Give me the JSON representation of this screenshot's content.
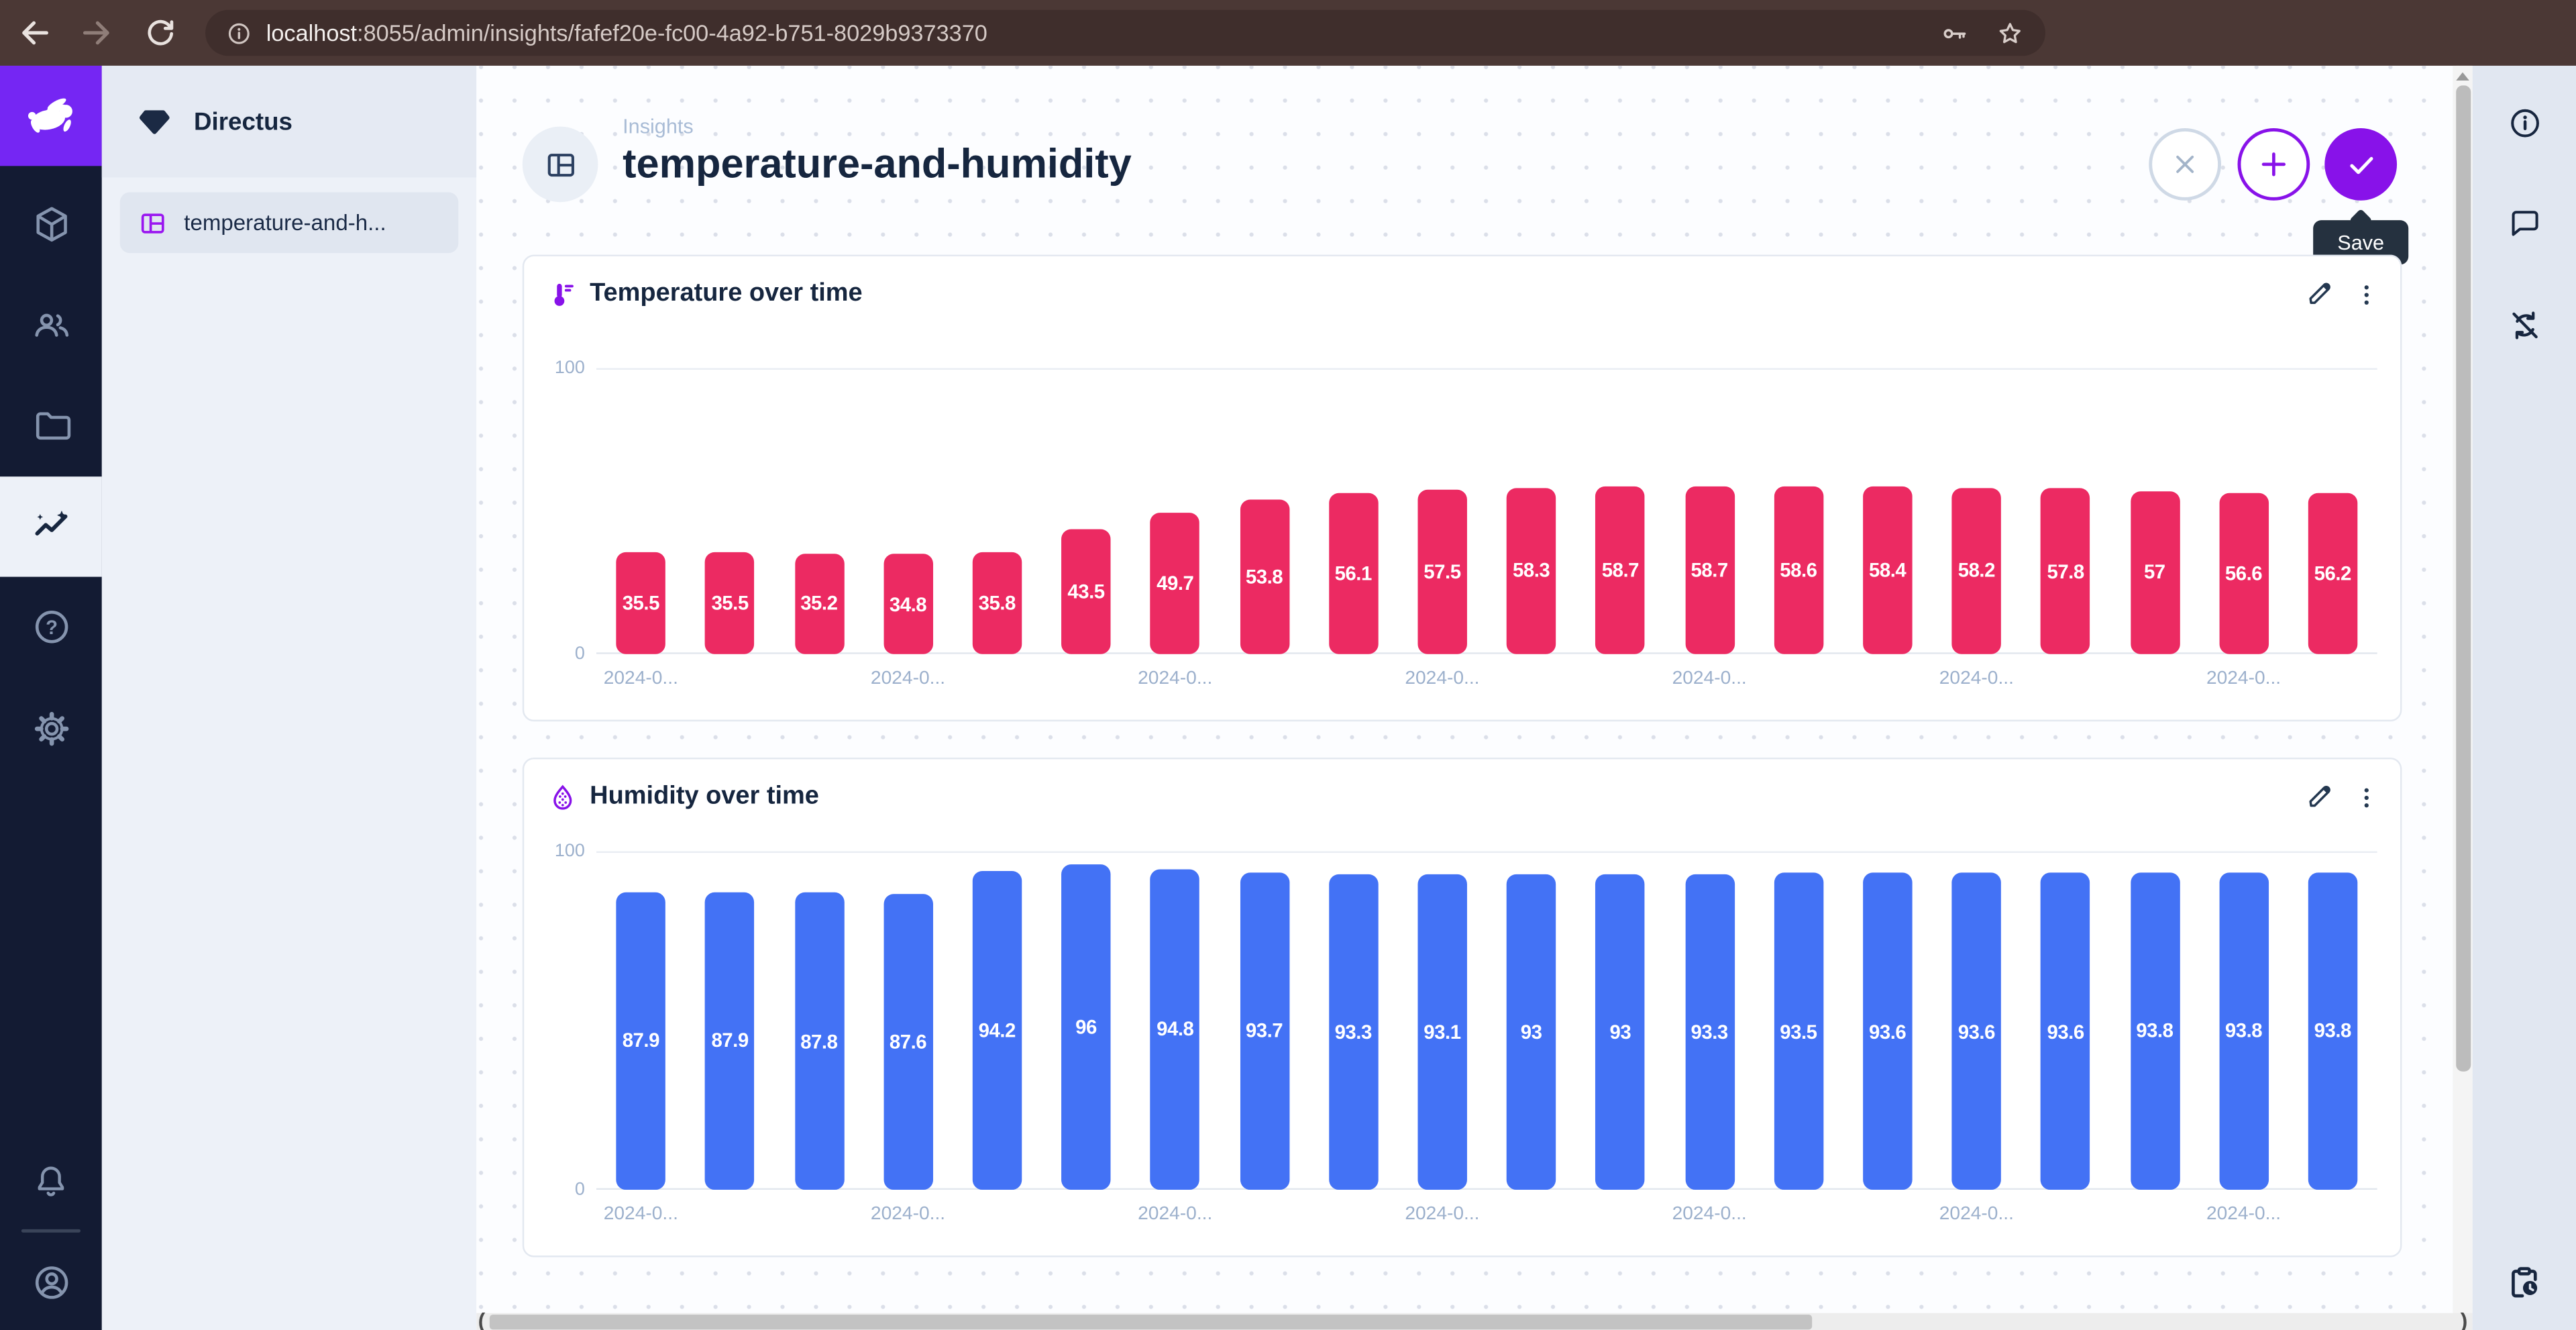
{
  "browser": {
    "url": "localhost:8055/admin/insights/fafef20e-fc00-4a92-b751-8029b9373370",
    "url_host": "localhost",
    "url_rest": ":8055/admin/insights/fafef20e-fc00-4a92-b751-8029b9373370"
  },
  "sidebar": {
    "project_name": "Directus",
    "dashboard_item": "temperature-and-h..."
  },
  "header": {
    "breadcrumb": "Insights",
    "title": "temperature-and-humidity",
    "save_tooltip": "Save"
  },
  "theme": {
    "accent": "#8812e9",
    "logo_purple": "#7526f3",
    "module_bar_bg": "#131b33",
    "chrome_bar": "#4b3835",
    "navy": "#16263f",
    "temperature_bar_color": "#ec2a62",
    "humidity_bar_color": "#4372f5"
  },
  "icons": {
    "browser": [
      "back",
      "forward",
      "reload",
      "site-info",
      "password-key",
      "bookmark-star"
    ],
    "module_bar": [
      "rabbit-logo",
      "content-cube",
      "users",
      "files",
      "insights-active",
      "help",
      "settings",
      "notifications-bell",
      "user-avatar"
    ],
    "panel": [
      "thermometer",
      "humidity-drop",
      "edit-pencil",
      "more-vertical"
    ],
    "right_sidebar": [
      "info",
      "comments",
      "auto-refresh-disabled",
      "activity-clock"
    ]
  },
  "chart_data": [
    {
      "type": "bar",
      "title": "Temperature over time",
      "values": [
        35.5,
        35.5,
        35.2,
        34.8,
        35.8,
        43.5,
        49.7,
        53.8,
        56.1,
        57.5,
        58.3,
        58.7,
        58.7,
        58.6,
        58.4,
        58.2,
        57.8,
        57,
        56.6,
        56.2
      ],
      "ylim": [
        0,
        100
      ],
      "x_tick_label": "2024-0...",
      "x_tick_positions": [
        0,
        3,
        6,
        9,
        12,
        15,
        18
      ],
      "bar_color": "#ec2a62",
      "value_label_color": "#ffffff",
      "grid": "top-and-baseline",
      "legend": "none"
    },
    {
      "type": "bar",
      "title": "Humidity over time",
      "values": [
        87.9,
        87.9,
        87.8,
        87.6,
        94.2,
        96,
        94.8,
        93.7,
        93.3,
        93.1,
        93,
        93,
        93.3,
        93.5,
        93.6,
        93.6,
        93.6,
        93.8,
        93.8,
        93.8
      ],
      "ylim": [
        0,
        100
      ],
      "x_tick_label": "2024-0...",
      "x_tick_positions": [
        0,
        3,
        6,
        9,
        12,
        15,
        18
      ],
      "bar_color": "#4372f5",
      "value_label_color": "#ffffff",
      "grid": "top-and-baseline",
      "legend": "none"
    }
  ]
}
